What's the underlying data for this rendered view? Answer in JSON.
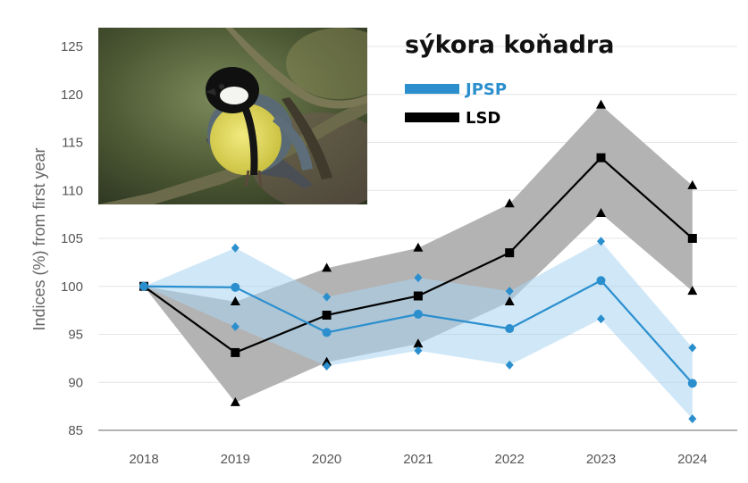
{
  "chart_data": {
    "type": "line",
    "title": "sýkora koňadra",
    "ylabel": "Indices (%) from first year",
    "xlabel": "",
    "categories": [
      "2018",
      "2019",
      "2020",
      "2021",
      "2022",
      "2023",
      "2024"
    ],
    "ylim": [
      85,
      125
    ],
    "yticks": [
      "85",
      "90",
      "95",
      "100",
      "105",
      "110",
      "115",
      "120",
      "125"
    ],
    "grid": "horizontal",
    "legend_position": "top-right",
    "series": [
      {
        "name": "JPSP",
        "color": "#2b8fce",
        "band_color": "#a8d4f0",
        "marker": "circle",
        "bound_marker": "diamond",
        "values": [
          100,
          99.9,
          95.2,
          97.1,
          95.6,
          100.6,
          89.9
        ],
        "lower": [
          100,
          95.8,
          91.7,
          93.3,
          91.8,
          96.6,
          86.2
        ],
        "upper": [
          100,
          104.0,
          98.9,
          100.9,
          99.5,
          104.7,
          93.6
        ]
      },
      {
        "name": "LSD",
        "color": "#000000",
        "band_color": "#b3b3b3",
        "marker": "square",
        "bound_marker": "triangle",
        "values": [
          100,
          93.1,
          97.0,
          99.0,
          103.5,
          113.4,
          105.0
        ],
        "lower": [
          100,
          87.9,
          92.1,
          94.0,
          98.4,
          107.6,
          99.5
        ],
        "upper": [
          100,
          98.4,
          101.9,
          104.0,
          108.6,
          118.9,
          110.5
        ]
      }
    ],
    "image": {
      "subject": "great-tit-bird-photo"
    }
  }
}
